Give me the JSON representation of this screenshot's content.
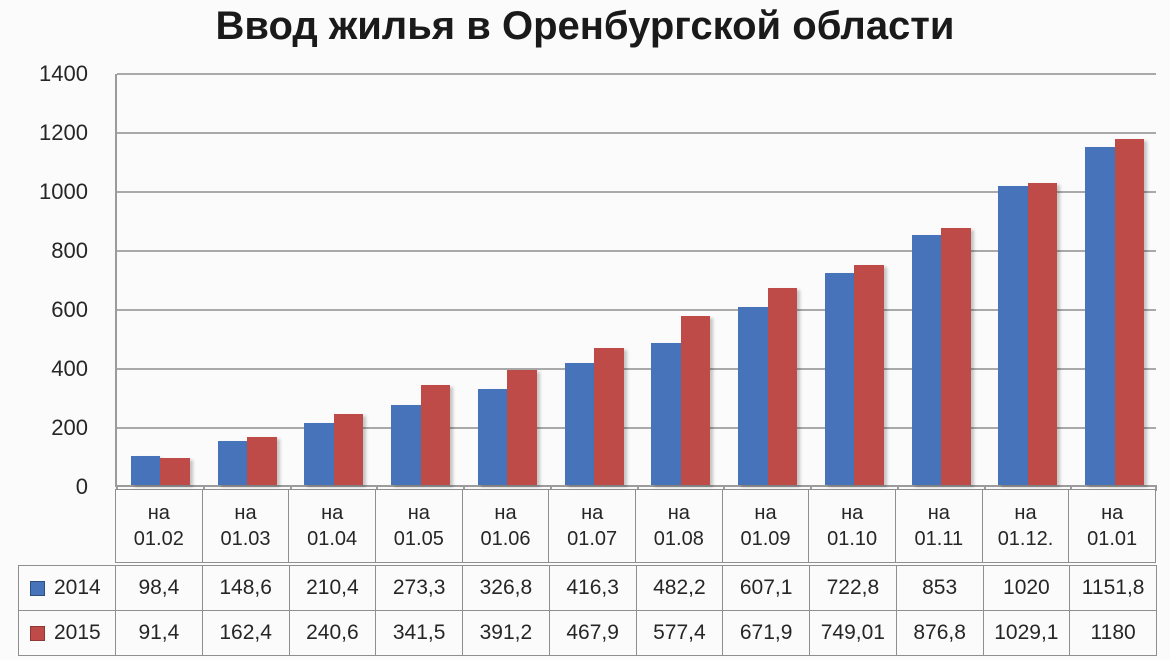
{
  "title": "Ввод жилья в Оренбургской области",
  "colors": {
    "series_2014": "#4673B9",
    "series_2014_border": "#2E4E7E",
    "series_2015": "#BE4B48",
    "series_2015_border": "#8C3836",
    "grid": "#A9A9A9",
    "axis": "#9B9B9B",
    "cell_border": "#8F8F8F",
    "background": "#FBFBFB",
    "text": "#262626"
  },
  "chart_data": {
    "type": "bar",
    "title": "Ввод жилья в Оренбургской области",
    "categories": [
      "на 01.02",
      "на 01.03",
      "на 01.04",
      "на 01.05",
      "на 01.06",
      "на 01.07",
      "на 01.08",
      "на 01.09",
      "на 01.10",
      "на 01.11",
      "на 01.12.",
      "на 01.01"
    ],
    "series": [
      {
        "name": "2014",
        "color": "#4673B9",
        "key_border": "#2E4E7E",
        "values": [
          98.4,
          148.6,
          210.4,
          273.3,
          326.8,
          416.3,
          482.2,
          607.1,
          722.8,
          853,
          1020,
          1151.8
        ],
        "display": [
          "98,4",
          "148,6",
          "210,4",
          "273,3",
          "326,8",
          "416,3",
          "482,2",
          "607,1",
          "722,8",
          "853",
          "1020",
          "1151,8"
        ]
      },
      {
        "name": "2015",
        "color": "#BE4B48",
        "key_border": "#8C3836",
        "values": [
          91.4,
          162.4,
          240.6,
          341.5,
          391.2,
          467.9,
          577.4,
          671.9,
          749.01,
          876.8,
          1029.1,
          1180
        ],
        "display": [
          "91,4",
          "162,4",
          "240,6",
          "341,5",
          "391,2",
          "467,9",
          "577,4",
          "671,9",
          "749,01",
          "876,8",
          "1029,1",
          "1180"
        ]
      }
    ],
    "y_ticks": [
      1400,
      1200,
      1000,
      800,
      600,
      400,
      200,
      0
    ],
    "ylim": [
      0,
      1400
    ],
    "xlabel": "",
    "ylabel": "",
    "grid": true,
    "legend_position": "table-left"
  }
}
